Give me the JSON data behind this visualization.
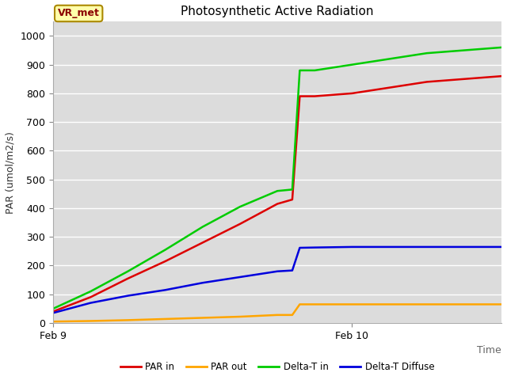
{
  "title": "Photosynthetic Active Radiation",
  "xlabel": "Time",
  "ylabel": "PAR (umol/m2/s)",
  "ylim": [
    0,
    1050
  ],
  "plot_bg_color": "#dcdcdc",
  "fig_bg_color": "#ffffff",
  "xtick_labels": [
    "Feb 9",
    "Feb 10"
  ],
  "xtick_positions": [
    0,
    8
  ],
  "annotation_label": "VR_met",
  "series": {
    "PAR in": {
      "color": "#dd0000",
      "x": [
        0,
        1,
        2,
        3,
        4,
        5,
        6,
        6.4,
        6.6,
        7,
        8,
        9,
        10,
        11,
        12
      ],
      "y": [
        40,
        90,
        155,
        215,
        280,
        345,
        415,
        430,
        790,
        790,
        800,
        820,
        840,
        850,
        860
      ]
    },
    "PAR out": {
      "color": "#ffa500",
      "x": [
        0,
        1,
        2,
        3,
        4,
        5,
        6,
        6.4,
        6.6,
        7,
        8,
        9,
        10,
        11,
        12
      ],
      "y": [
        5,
        7,
        10,
        14,
        18,
        22,
        28,
        28,
        65,
        65,
        65,
        65,
        65,
        65,
        65
      ]
    },
    "Delta-T in": {
      "color": "#00cc00",
      "x": [
        0,
        1,
        2,
        3,
        4,
        5,
        6,
        6.4,
        6.6,
        7,
        8,
        9,
        10,
        11,
        12
      ],
      "y": [
        50,
        110,
        180,
        255,
        335,
        405,
        460,
        465,
        880,
        880,
        900,
        920,
        940,
        950,
        960
      ]
    },
    "Delta-T Diffuse": {
      "color": "#0000dd",
      "x": [
        0,
        1,
        2,
        3,
        4,
        5,
        6,
        6.4,
        6.6,
        7,
        8,
        9,
        10,
        11,
        12
      ],
      "y": [
        35,
        70,
        95,
        115,
        140,
        160,
        180,
        183,
        262,
        263,
        265,
        265,
        265,
        265,
        265
      ]
    }
  },
  "legend_entries": [
    "PAR in",
    "PAR out",
    "Delta-T in",
    "Delta-T Diffuse"
  ],
  "legend_colors": [
    "#dd0000",
    "#ffa500",
    "#00cc00",
    "#0000dd"
  ],
  "title_fontsize": 11,
  "axis_label_fontsize": 9,
  "tick_fontsize": 9,
  "linewidth": 1.8,
  "annotation_fontsize": 9
}
